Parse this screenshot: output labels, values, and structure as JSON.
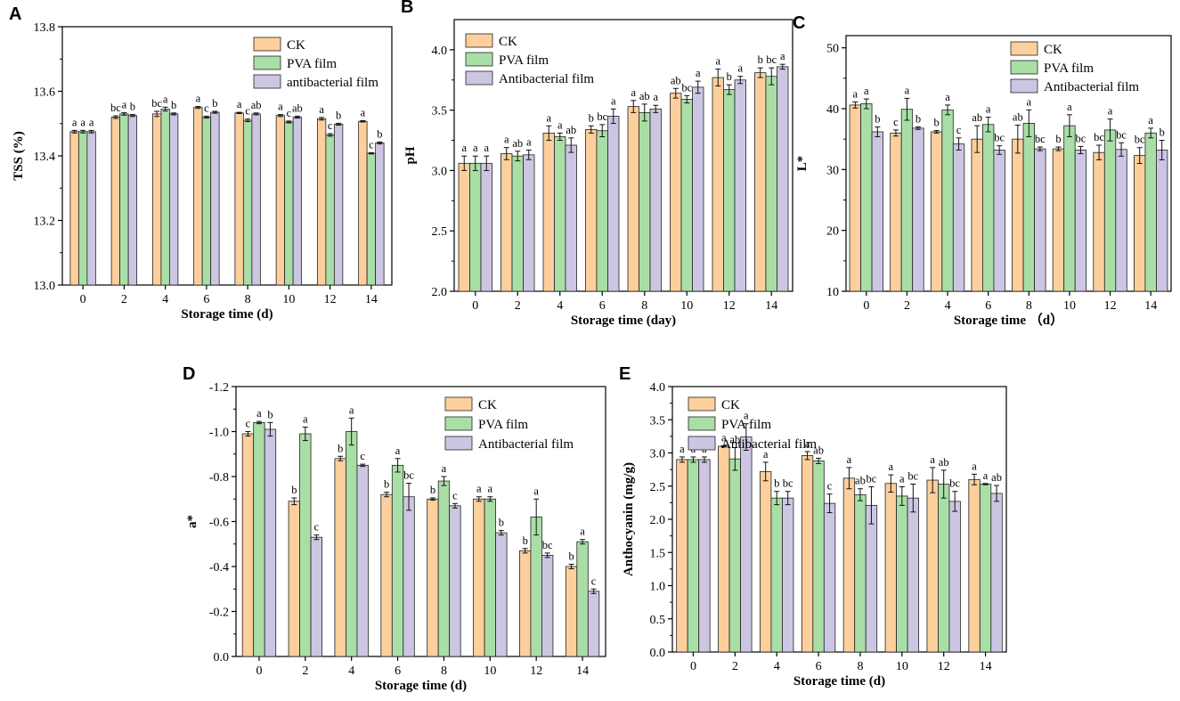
{
  "series_colors": {
    "CK": "#fccf9c",
    "PVA film": "#a9dfa7",
    "Antibacterial film": "#cdc6e3"
  },
  "chart_data": [
    {
      "id": "A",
      "type": "bar",
      "letter": "A",
      "categories": [
        "0",
        "2",
        "4",
        "6",
        "8",
        "10",
        "12",
        "14"
      ],
      "xlabel": "Storage time (d)",
      "ylabel": "TSS (%)",
      "ylim": [
        13.0,
        13.8
      ],
      "yticks": [
        "13.0",
        "13.2",
        "13.4",
        "13.6",
        "13.8"
      ],
      "legend": [
        "CK",
        "PVA film",
        "antibacterial film"
      ],
      "series": [
        {
          "name": "CK",
          "values": [
            13.475,
            13.52,
            13.53,
            13.55,
            13.533,
            13.525,
            13.515,
            13.507
          ],
          "errors": [
            0.004,
            0.004,
            0.008,
            0.003,
            0.002,
            0.003,
            0.004,
            0.002
          ],
          "letters": [
            "a",
            "bc",
            "bc",
            "a",
            "a",
            "a",
            "a",
            "a"
          ]
        },
        {
          "name": "PVA film",
          "values": [
            13.475,
            13.53,
            13.545,
            13.52,
            13.51,
            13.505,
            13.465,
            13.408
          ],
          "errors": [
            0.004,
            0.004,
            0.006,
            0.003,
            0.004,
            0.003,
            0.004,
            0.002
          ],
          "letters": [
            "a",
            "a",
            "a",
            "c",
            "c",
            "c",
            "c",
            "c"
          ]
        },
        {
          "name": "antibacterial film",
          "values": [
            13.475,
            13.525,
            13.53,
            13.535,
            13.53,
            13.52,
            13.498,
            13.44
          ],
          "errors": [
            0.004,
            0.003,
            0.003,
            0.003,
            0.003,
            0.003,
            0.003,
            0.003
          ],
          "letters": [
            "a",
            "b",
            "b",
            "b",
            "ab",
            "ab",
            "b",
            "b"
          ]
        }
      ]
    },
    {
      "id": "B",
      "type": "bar",
      "letter": "B",
      "categories": [
        "0",
        "2",
        "4",
        "6",
        "8",
        "10",
        "12",
        "14"
      ],
      "xlabel": "Storage time (day)",
      "ylabel": "pH",
      "ylim": [
        2.0,
        4.25
      ],
      "yticks": [
        "2.0",
        "2.5",
        "3.0",
        "3.5",
        "4.0"
      ],
      "legend": [
        "CK",
        "PVA film",
        "Antibacterial film"
      ],
      "series": [
        {
          "name": "CK",
          "values": [
            3.06,
            3.14,
            3.31,
            3.34,
            3.53,
            3.64,
            3.77,
            3.81
          ],
          "errors": [
            0.06,
            0.05,
            0.06,
            0.03,
            0.05,
            0.04,
            0.07,
            0.04
          ],
          "letters": [
            "a",
            "a",
            "a",
            "b",
            "a",
            "ab",
            "a",
            "b"
          ]
        },
        {
          "name": "PVA film",
          "values": [
            3.06,
            3.12,
            3.28,
            3.33,
            3.48,
            3.59,
            3.67,
            3.78
          ],
          "errors": [
            0.06,
            0.04,
            0.03,
            0.05,
            0.07,
            0.03,
            0.04,
            0.07
          ],
          "letters": [
            "a",
            "ab",
            "a",
            "bc",
            "ab",
            "bc",
            "b",
            "bc"
          ]
        },
        {
          "name": "Antibacterial film",
          "values": [
            3.06,
            3.13,
            3.21,
            3.45,
            3.51,
            3.69,
            3.75,
            3.86
          ],
          "errors": [
            0.06,
            0.04,
            0.06,
            0.06,
            0.03,
            0.05,
            0.03,
            0.02
          ],
          "letters": [
            "a",
            "a",
            "ab",
            "a",
            "a",
            "a",
            "a",
            "a"
          ]
        }
      ]
    },
    {
      "id": "C",
      "type": "bar",
      "letter": "C",
      "categories": [
        "0",
        "2",
        "4",
        "6",
        "8",
        "10",
        "12",
        "14"
      ],
      "xlabel": "Storage time （d）",
      "ylabel": "L*",
      "ylim": [
        10,
        52
      ],
      "yticks": [
        "10",
        "20",
        "30",
        "40",
        "50"
      ],
      "legend": [
        "CK",
        "PVA film",
        "Antibacterial film"
      ],
      "series": [
        {
          "name": "CK",
          "values": [
            40.6,
            36.0,
            36.2,
            35.0,
            35.0,
            33.4,
            32.8,
            32.3
          ],
          "errors": [
            0.5,
            0.5,
            0.2,
            2.2,
            2.3,
            0.3,
            1.2,
            1.3
          ],
          "letters": [
            "a",
            "c",
            "b",
            "ab",
            "ab",
            "b",
            "bc",
            "bc"
          ]
        },
        {
          "name": "PVA film",
          "values": [
            40.8,
            39.9,
            39.8,
            37.4,
            37.6,
            37.2,
            36.5,
            36.0
          ],
          "errors": [
            0.8,
            1.8,
            0.8,
            1.2,
            2.2,
            1.8,
            1.8,
            0.8
          ],
          "letters": [
            "a",
            "a",
            "a",
            "a",
            "a",
            "a",
            "a",
            "a"
          ]
        },
        {
          "name": "Antibacterial film",
          "values": [
            36.2,
            36.8,
            34.2,
            33.2,
            33.4,
            33.2,
            33.3,
            33.2
          ],
          "errors": [
            0.8,
            0.2,
            1.0,
            0.7,
            0.3,
            0.6,
            1.1,
            1.6
          ],
          "letters": [
            "b",
            "b",
            "c",
            "bc",
            "bc",
            "bc",
            "bc",
            "b"
          ]
        }
      ]
    },
    {
      "id": "D",
      "type": "bar",
      "letter": "D",
      "categories": [
        "0",
        "2",
        "4",
        "6",
        "8",
        "10",
        "12",
        "14"
      ],
      "xlabel": "Storage time (d)",
      "ylabel": "a*",
      "ylim": [
        0,
        -1.2
      ],
      "yticks": [
        "0.0",
        "-0.2",
        "-0.4",
        "-0.6",
        "-0.8",
        "-1.0",
        "-1.2"
      ],
      "legend": [
        "CK",
        "PVA film",
        "Antibacterial film"
      ],
      "series": [
        {
          "name": "CK",
          "values": [
            -0.99,
            -0.69,
            -0.88,
            -0.72,
            -0.7,
            -0.7,
            -0.47,
            -0.4
          ],
          "errors": [
            0.01,
            0.015,
            0.01,
            0.01,
            0.005,
            0.01,
            0.01,
            0.01
          ],
          "letters": [
            "c",
            "b",
            "b",
            "b",
            "b",
            "a",
            "b",
            "b"
          ]
        },
        {
          "name": "PVA film",
          "values": [
            -1.04,
            -0.99,
            -1.0,
            -0.85,
            -0.78,
            -0.7,
            -0.62,
            -0.51
          ],
          "errors": [
            0.005,
            0.03,
            0.06,
            0.03,
            0.02,
            0.01,
            0.08,
            0.01
          ],
          "letters": [
            "a",
            "a",
            "a",
            "a",
            "a",
            "a",
            "a",
            "a"
          ]
        },
        {
          "name": "Antibacterial film",
          "values": [
            -1.01,
            -0.53,
            -0.85,
            -0.71,
            -0.67,
            -0.55,
            -0.45,
            -0.29
          ],
          "errors": [
            0.03,
            0.01,
            0.005,
            0.06,
            0.01,
            0.01,
            0.01,
            0.01
          ],
          "letters": [
            "b",
            "c",
            "c",
            "bc",
            "c",
            "b",
            "bc",
            "c"
          ]
        }
      ]
    },
    {
      "id": "E",
      "type": "bar",
      "letter": "E",
      "categories": [
        "0",
        "2",
        "4",
        "6",
        "8",
        "10",
        "12",
        "14"
      ],
      "xlabel": "Storage time (d)",
      "ylabel": "Anthocyanin (mg/g)",
      "ylim": [
        0,
        4.0
      ],
      "yticks": [
        "0.0",
        "0.5",
        "1.0",
        "1.5",
        "2.0",
        "2.5",
        "3.0",
        "3.5",
        "4.0"
      ],
      "legend": [
        "CK",
        "PVA film",
        "Antibacterial film"
      ],
      "series": [
        {
          "name": "CK",
          "values": [
            2.9,
            3.1,
            2.72,
            2.96,
            2.62,
            2.54,
            2.59,
            2.6
          ],
          "errors": [
            0.04,
            0.01,
            0.14,
            0.06,
            0.16,
            0.13,
            0.19,
            0.08
          ],
          "letters": [
            "a",
            "a",
            "a",
            "a",
            "a",
            "a",
            "a",
            "a"
          ]
        },
        {
          "name": "PVA film",
          "values": [
            2.9,
            2.91,
            2.32,
            2.88,
            2.37,
            2.35,
            2.53,
            2.53
          ],
          "errors": [
            0.04,
            0.17,
            0.1,
            0.04,
            0.09,
            0.14,
            0.21,
            0.01
          ],
          "letters": [
            "a",
            "ab",
            "b",
            "ab",
            "ab",
            "a",
            "ab",
            "a"
          ]
        },
        {
          "name": "Antibacterial film",
          "values": [
            2.9,
            3.24,
            2.32,
            2.24,
            2.21,
            2.32,
            2.27,
            2.39
          ],
          "errors": [
            0.04,
            0.2,
            0.1,
            0.14,
            0.28,
            0.21,
            0.15,
            0.12
          ],
          "letters": [
            "a",
            "a",
            "bc",
            "c",
            "bc",
            "bc",
            "bc",
            "ab"
          ]
        }
      ]
    }
  ]
}
